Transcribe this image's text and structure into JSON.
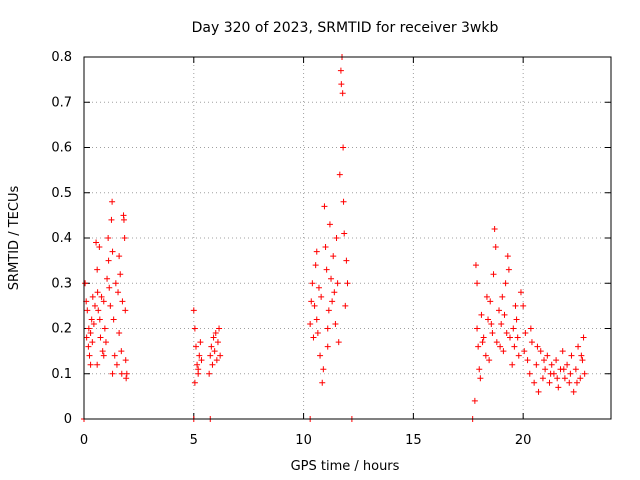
{
  "chart_data": {
    "type": "scatter",
    "title": "Day 320 of 2023, SRMTID for receiver 3wkb",
    "xlabel": "GPS time / hours",
    "ylabel": "SRMTID / TECUs",
    "xlim": [
      0,
      24
    ],
    "ylim": [
      0,
      0.8
    ],
    "xticks": [
      0,
      5,
      10,
      15,
      20
    ],
    "xtick_labels": [
      "0",
      "5",
      "10",
      "15",
      "20"
    ],
    "yticks": [
      0,
      0.1,
      0.2,
      0.3,
      0.4,
      0.5,
      0.6,
      0.7,
      0.8
    ],
    "ytick_labels": [
      "0",
      "0.1",
      "0.2",
      "0.3",
      "0.4",
      "0.5",
      "0.6",
      "0.7",
      "0.8"
    ],
    "grid": true,
    "marker": "+",
    "color": "#ff0000",
    "series": [
      {
        "name": "SRMTID",
        "points": [
          [
            0.05,
            0.3
          ],
          [
            0.1,
            0.26
          ],
          [
            0.12,
            0.18
          ],
          [
            0.15,
            0.24
          ],
          [
            0.2,
            0.16
          ],
          [
            0.22,
            0.2
          ],
          [
            0.25,
            0.14
          ],
          [
            0.3,
            0.19
          ],
          [
            0.35,
            0.22
          ],
          [
            0.38,
            0.17
          ],
          [
            0.4,
            0.27
          ],
          [
            0.45,
            0.21
          ],
          [
            0.5,
            0.25
          ],
          [
            0.55,
            0.39
          ],
          [
            0.6,
            0.33
          ],
          [
            0.62,
            0.28
          ],
          [
            0.65,
            0.24
          ],
          [
            0.7,
            0.38
          ],
          [
            0.72,
            0.22
          ],
          [
            0.75,
            0.18
          ],
          [
            0.8,
            0.27
          ],
          [
            0.85,
            0.15
          ],
          [
            0.9,
            0.26
          ],
          [
            0.95,
            0.2
          ],
          [
            1.0,
            0.17
          ],
          [
            1.05,
            0.31
          ],
          [
            1.1,
            0.4
          ],
          [
            1.12,
            0.35
          ],
          [
            1.15,
            0.29
          ],
          [
            1.2,
            0.25
          ],
          [
            1.25,
            0.44
          ],
          [
            1.28,
            0.48
          ],
          [
            1.3,
            0.37
          ],
          [
            1.35,
            0.22
          ],
          [
            1.4,
            0.14
          ],
          [
            1.45,
            0.3
          ],
          [
            1.5,
            0.12
          ],
          [
            1.55,
            0.28
          ],
          [
            1.6,
            0.19
          ],
          [
            1.65,
            0.32
          ],
          [
            1.7,
            0.15
          ],
          [
            1.72,
            0.1
          ],
          [
            1.75,
            0.26
          ],
          [
            1.8,
            0.45
          ],
          [
            1.82,
            0.44
          ],
          [
            1.85,
            0.4
          ],
          [
            1.88,
            0.24
          ],
          [
            1.9,
            0.13
          ],
          [
            1.92,
            0.09
          ],
          [
            1.95,
            0.1
          ],
          [
            0.6,
            0.12
          ],
          [
            0.9,
            0.14
          ],
          [
            1.3,
            0.1
          ],
          [
            0.3,
            0.12
          ],
          [
            1.6,
            0.36
          ],
          [
            5.0,
            0.24
          ],
          [
            5.05,
            0.2
          ],
          [
            5.1,
            0.16
          ],
          [
            5.15,
            0.12
          ],
          [
            5.2,
            0.1
          ],
          [
            5.25,
            0.14
          ],
          [
            5.3,
            0.17
          ],
          [
            5.35,
            0.13
          ],
          [
            5.05,
            0.08
          ],
          [
            5.2,
            0.11
          ],
          [
            5.7,
            0.1
          ],
          [
            5.75,
            0.14
          ],
          [
            5.8,
            0.16
          ],
          [
            5.85,
            0.12
          ],
          [
            5.9,
            0.18
          ],
          [
            5.95,
            0.15
          ],
          [
            6.0,
            0.19
          ],
          [
            6.05,
            0.13
          ],
          [
            6.1,
            0.17
          ],
          [
            6.15,
            0.2
          ],
          [
            6.2,
            0.14
          ],
          [
            10.3,
            0.21
          ],
          [
            10.35,
            0.26
          ],
          [
            10.4,
            0.3
          ],
          [
            10.45,
            0.18
          ],
          [
            10.5,
            0.25
          ],
          [
            10.55,
            0.34
          ],
          [
            10.6,
            0.22
          ],
          [
            10.65,
            0.19
          ],
          [
            10.7,
            0.29
          ],
          [
            10.75,
            0.14
          ],
          [
            10.8,
            0.27
          ],
          [
            10.85,
            0.08
          ],
          [
            10.9,
            0.11
          ],
          [
            10.95,
            0.47
          ],
          [
            11.0,
            0.38
          ],
          [
            11.05,
            0.33
          ],
          [
            11.1,
            0.2
          ],
          [
            11.15,
            0.24
          ],
          [
            11.2,
            0.43
          ],
          [
            11.25,
            0.31
          ],
          [
            11.3,
            0.26
          ],
          [
            11.35,
            0.36
          ],
          [
            11.4,
            0.28
          ],
          [
            11.45,
            0.21
          ],
          [
            11.5,
            0.4
          ],
          [
            11.55,
            0.3
          ],
          [
            11.6,
            0.17
          ],
          [
            11.65,
            0.54
          ],
          [
            11.7,
            0.77
          ],
          [
            11.72,
            0.74
          ],
          [
            11.75,
            0.8
          ],
          [
            11.78,
            0.72
          ],
          [
            11.8,
            0.6
          ],
          [
            11.82,
            0.48
          ],
          [
            11.85,
            0.41
          ],
          [
            11.9,
            0.25
          ],
          [
            11.95,
            0.35
          ],
          [
            12.0,
            0.3
          ],
          [
            11.1,
            0.16
          ],
          [
            10.6,
            0.37
          ],
          [
            17.8,
            0.04
          ],
          [
            17.85,
            0.34
          ],
          [
            17.9,
            0.2
          ],
          [
            17.95,
            0.16
          ],
          [
            18.0,
            0.11
          ],
          [
            18.1,
            0.23
          ],
          [
            18.2,
            0.18
          ],
          [
            18.3,
            0.14
          ],
          [
            18.4,
            0.22
          ],
          [
            18.5,
            0.26
          ],
          [
            18.6,
            0.19
          ],
          [
            18.7,
            0.42
          ],
          [
            18.75,
            0.38
          ],
          [
            18.8,
            0.17
          ],
          [
            18.9,
            0.24
          ],
          [
            19.0,
            0.21
          ],
          [
            19.1,
            0.15
          ],
          [
            19.2,
            0.3
          ],
          [
            19.3,
            0.36
          ],
          [
            19.35,
            0.33
          ],
          [
            19.4,
            0.18
          ],
          [
            19.5,
            0.12
          ],
          [
            19.6,
            0.16
          ],
          [
            19.7,
            0.22
          ],
          [
            19.8,
            0.14
          ],
          [
            19.9,
            0.28
          ],
          [
            20.0,
            0.25
          ],
          [
            20.1,
            0.19
          ],
          [
            20.2,
            0.13
          ],
          [
            20.3,
            0.1
          ],
          [
            20.4,
            0.17
          ],
          [
            20.5,
            0.08
          ],
          [
            20.6,
            0.12
          ],
          [
            20.7,
            0.06
          ],
          [
            20.8,
            0.15
          ],
          [
            20.9,
            0.09
          ],
          [
            21.0,
            0.11
          ],
          [
            21.1,
            0.14
          ],
          [
            21.2,
            0.08
          ],
          [
            21.3,
            0.12
          ],
          [
            21.4,
            0.1
          ],
          [
            21.5,
            0.13
          ],
          [
            21.6,
            0.07
          ],
          [
            21.7,
            0.11
          ],
          [
            21.8,
            0.15
          ],
          [
            21.9,
            0.09
          ],
          [
            22.0,
            0.12
          ],
          [
            22.1,
            0.08
          ],
          [
            22.2,
            0.14
          ],
          [
            22.3,
            0.06
          ],
          [
            22.4,
            0.11
          ],
          [
            22.5,
            0.16
          ],
          [
            22.6,
            0.09
          ],
          [
            22.7,
            0.13
          ],
          [
            22.75,
            0.18
          ],
          [
            22.8,
            0.1
          ],
          [
            18.05,
            0.09
          ],
          [
            18.45,
            0.13
          ],
          [
            19.05,
            0.27
          ],
          [
            19.55,
            0.2
          ],
          [
            18.15,
            0.17
          ],
          [
            18.55,
            0.21
          ],
          [
            18.95,
            0.16
          ],
          [
            19.25,
            0.19
          ],
          [
            19.65,
            0.25
          ],
          [
            20.05,
            0.15
          ],
          [
            20.35,
            0.2
          ],
          [
            20.65,
            0.16
          ],
          [
            20.95,
            0.13
          ],
          [
            21.25,
            0.1
          ],
          [
            21.55,
            0.09
          ],
          [
            21.85,
            0.11
          ],
          [
            22.15,
            0.1
          ],
          [
            22.45,
            0.08
          ],
          [
            22.65,
            0.14
          ],
          [
            17.9,
            0.3
          ],
          [
            18.35,
            0.27
          ],
          [
            18.65,
            0.32
          ],
          [
            19.15,
            0.23
          ],
          [
            19.75,
            0.18
          ],
          [
            0.0,
            0.0
          ],
          [
            5.0,
            0.0
          ],
          [
            5.75,
            0.0
          ],
          [
            10.3,
            0.0
          ],
          [
            12.2,
            0.0
          ],
          [
            17.7,
            0.0
          ]
        ]
      }
    ]
  }
}
